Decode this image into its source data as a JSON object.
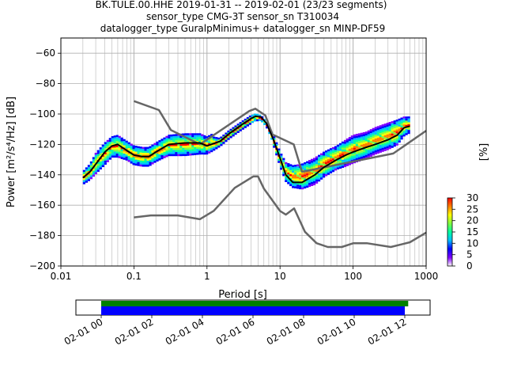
{
  "title_lines": [
    "BK.TULE.00.HHE   2019-01-31 -- 2019-02-01  (23/23 segments)",
    "sensor_type CMG-3T sensor_sn T310034",
    "datalogger_type GuralpMinimus+ datalogger_sn MINP-DF59"
  ],
  "colorbar": {
    "label": "[%]",
    "ticks": [
      "0",
      "5",
      "10",
      "15",
      "20",
      "25",
      "30"
    ],
    "min": 0,
    "max": 30,
    "colors": [
      "#ffffff",
      "#8000ff",
      "#0000ff",
      "#00bfff",
      "#00ffa0",
      "#80ff40",
      "#ffff00",
      "#ff8000",
      "#ff0000"
    ]
  },
  "chart_data": [
    {
      "type": "line",
      "title": "BK.TULE.00.HHE   2019-01-31 -- 2019-02-01  (23/23 segments)",
      "xlabel": "Period [s]",
      "ylabel": "Power [m²/s⁴/Hz] [dB]",
      "x_scale": "log",
      "xlim": [
        0.01,
        1000
      ],
      "ylim": [
        -200,
        -50
      ],
      "x_ticks": [
        {
          "v": 0.01,
          "label": "0.01"
        },
        {
          "v": 0.1,
          "label": "0.1"
        },
        {
          "v": 1,
          "label": "1"
        },
        {
          "v": 10,
          "label": "10"
        },
        {
          "v": 100,
          "label": "100"
        },
        {
          "v": 1000,
          "label": "1000"
        }
      ],
      "y_ticks": [
        {
          "v": -60,
          "label": "−60"
        },
        {
          "v": -80,
          "label": "−80"
        },
        {
          "v": -100,
          "label": "−100"
        },
        {
          "v": -120,
          "label": "−120"
        },
        {
          "v": -140,
          "label": "−140"
        },
        {
          "v": -160,
          "label": "−160"
        },
        {
          "v": -180,
          "label": "−180"
        },
        {
          "v": -200,
          "label": "−200"
        }
      ],
      "grid": true,
      "series": [
        {
          "role": "nhnm",
          "color": "#666666",
          "x": [
            0.1,
            0.22,
            0.32,
            0.8,
            3.8,
            4.6,
            6.3,
            7.9,
            15.4,
            20,
            354.8,
            1000
          ],
          "y": [
            -91.5,
            -97.4,
            -110.5,
            -120,
            -98,
            -96.5,
            -101,
            -113.5,
            -120,
            -138,
            -126,
            -111
          ]
        },
        {
          "role": "nlnm",
          "color": "#666666",
          "x": [
            0.1,
            0.17,
            0.4,
            0.8,
            1.24,
            2.4,
            4.3,
            5,
            6,
            10,
            12,
            15.6,
            21.9,
            31.6,
            45,
            70,
            101,
            154,
            328,
            600,
            1000
          ],
          "y": [
            -168,
            -166.7,
            -166.7,
            -169.2,
            -163.7,
            -148.6,
            -141.1,
            -141.1,
            -149,
            -163.8,
            -166.2,
            -162.1,
            -177.5,
            -185,
            -187.5,
            -187.5,
            -185,
            -185,
            -187.5,
            -184.4,
            -178
          ]
        },
        {
          "role": "mode",
          "color": "#000000",
          "x": [
            0.02,
            0.025,
            0.03,
            0.04,
            0.05,
            0.06,
            0.08,
            0.1,
            0.13,
            0.16,
            0.2,
            0.3,
            0.5,
            0.8,
            1,
            1.5,
            2,
            3,
            4,
            4.6,
            5.5,
            6.5,
            8,
            10,
            12,
            15,
            20,
            30,
            40,
            60,
            80,
            100,
            150,
            200,
            300,
            400,
            500,
            600
          ],
          "y": [
            -142,
            -138,
            -133,
            -125,
            -121,
            -120,
            -124,
            -127,
            -128,
            -128,
            -125,
            -120,
            -119,
            -119,
            -121,
            -118,
            -113,
            -107,
            -103,
            -101.5,
            -102,
            -106,
            -116,
            -129,
            -140,
            -145,
            -145,
            -140,
            -135,
            -130,
            -127,
            -125,
            -122,
            -120,
            -117,
            -114,
            -109,
            -108
          ]
        }
      ],
      "psd_density": [
        {
          "x": [
            0.02,
            0.025,
            0.03,
            0.04,
            0.05,
            0.06,
            0.08,
            0.1,
            0.13,
            0.16,
            0.2,
            0.3,
            0.5,
            0.8,
            1,
            1.2
          ],
          "ymin": [
            -146,
            -143,
            -139,
            -133,
            -128,
            -128,
            -130,
            -133,
            -134,
            -134,
            -131,
            -127,
            -127,
            -126,
            -126,
            -124
          ],
          "ymax": [
            -137,
            -132,
            -125,
            -118,
            -114,
            -113,
            -117,
            -120,
            -121,
            -121,
            -118,
            -113,
            -112,
            -112,
            -114,
            -112
          ]
        },
        {
          "x": [
            1.2,
            1.5,
            2,
            3,
            4,
            4.6,
            5.5,
            6.5,
            8
          ],
          "ymin": [
            -124,
            -121,
            -116,
            -110,
            -106,
            -104,
            -104,
            -108,
            -118
          ],
          "ymax": [
            -114,
            -115,
            -110,
            -104,
            -100,
            -99,
            -100,
            -104,
            -113
          ]
        },
        {
          "x": [
            8,
            10,
            12,
            15,
            20,
            30,
            40,
            60,
            80,
            100,
            150,
            200,
            300,
            400,
            500,
            600
          ],
          "ymin": [
            -119,
            -134,
            -144,
            -148,
            -149,
            -146,
            -141,
            -136,
            -134,
            -132,
            -129,
            -126,
            -123,
            -120,
            -114,
            -112
          ],
          "ymax": [
            -112,
            -124,
            -131,
            -133,
            -132,
            -128,
            -124,
            -120,
            -116,
            -113,
            -111,
            -108,
            -105,
            -103,
            -101,
            -101
          ]
        }
      ]
    },
    {
      "type": "timeline",
      "xlim": [
        "2019-01-31 23:00",
        "2019-02-01 13:00"
      ],
      "x_ticks": [
        {
          "t": "2019-02-01 00:00",
          "label": "02-01 00"
        },
        {
          "t": "2019-02-01 02:00",
          "label": "02-01 02"
        },
        {
          "t": "2019-02-01 04:00",
          "label": "02-01 04"
        },
        {
          "t": "2019-02-01 06:00",
          "label": "02-01 06"
        },
        {
          "t": "2019-02-01 08:00",
          "label": "02-01 08"
        },
        {
          "t": "2019-02-01 10:00",
          "label": "02-01 10"
        },
        {
          "t": "2019-02-01 12:00",
          "label": "02-01 12"
        }
      ],
      "bars": [
        {
          "color": "#008000",
          "start": "2019-02-01 00:00",
          "end": "2019-02-01 12:08"
        },
        {
          "color": "#0000ff",
          "start": "2019-02-01 00:00",
          "end": "2019-02-01 12:00"
        }
      ]
    }
  ]
}
